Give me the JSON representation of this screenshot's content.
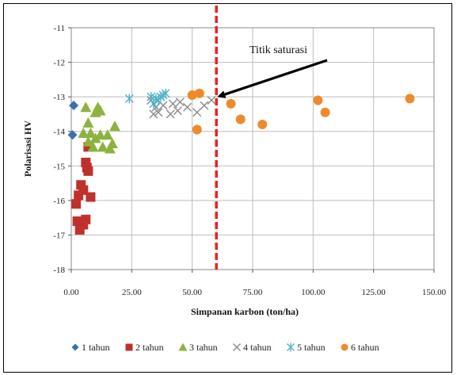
{
  "chart_data": {
    "type": "scatter",
    "title": "",
    "xlabel": "Simpanan karbon (ton/ha)",
    "ylabel": "Polarisasi HV",
    "xlim": [
      0,
      150
    ],
    "ylim": [
      -18,
      -11
    ],
    "x_ticks": [
      "0.00",
      "25.00",
      "50.00",
      "75.00",
      "100.00",
      "125.00",
      "150.00"
    ],
    "y_ticks": [
      "-11",
      "-12",
      "-13",
      "-14",
      "-15",
      "-16",
      "-17",
      "-18"
    ],
    "grid": true,
    "legend_position": "bottom",
    "annotation": {
      "text": "Titik saturasi",
      "arrow_to": [
        60,
        -13.05
      ]
    },
    "vline": {
      "x": 60,
      "color": "#e8231f",
      "style": "dashed"
    },
    "series": [
      {
        "name": "1 tahun",
        "marker": "diamond",
        "color": "#3a6fb0",
        "points": [
          [
            1,
            -13.25
          ],
          [
            0.5,
            -14.1
          ]
        ]
      },
      {
        "name": "2 tahun",
        "marker": "square",
        "color": "#c0312b",
        "points": [
          [
            6,
            -14.9
          ],
          [
            6.5,
            -15.05
          ],
          [
            7,
            -15.15
          ],
          [
            4,
            -15.55
          ],
          [
            5,
            -15.7
          ],
          [
            3,
            -15.85
          ],
          [
            8,
            -15.9
          ],
          [
            2,
            -16.1
          ],
          [
            2.5,
            -16.6
          ],
          [
            4,
            -16.7
          ],
          [
            5,
            -16.7
          ],
          [
            6,
            -16.55
          ],
          [
            3.5,
            -16.85
          ],
          [
            7,
            -14.45
          ]
        ]
      },
      {
        "name": "3 tahun",
        "marker": "triangle",
        "color": "#8db33f",
        "points": [
          [
            6,
            -13.3
          ],
          [
            11,
            -13.3
          ],
          [
            12,
            -13.4
          ],
          [
            10,
            -13.45
          ],
          [
            7,
            -13.75
          ],
          [
            18,
            -13.85
          ],
          [
            5,
            -14.05
          ],
          [
            8,
            -14.05
          ],
          [
            12,
            -14.1
          ],
          [
            15,
            -14.1
          ],
          [
            10,
            -14.2
          ],
          [
            7,
            -14.3
          ],
          [
            17,
            -14.35
          ],
          [
            13,
            -14.45
          ],
          [
            9,
            -14.45
          ],
          [
            16,
            -14.5
          ]
        ]
      },
      {
        "name": "4 tahun",
        "marker": "x",
        "color": "#8a8a8a",
        "points": [
          [
            33,
            -13.1
          ],
          [
            35,
            -13.3
          ],
          [
            38,
            -13.25
          ],
          [
            42,
            -13.2
          ],
          [
            45,
            -13.15
          ],
          [
            48,
            -13.3
          ],
          [
            36,
            -13.45
          ],
          [
            34,
            -13.5
          ],
          [
            41,
            -13.5
          ],
          [
            44,
            -13.4
          ],
          [
            52,
            -13.45
          ],
          [
            55,
            -13.25
          ],
          [
            58,
            -13.1
          ]
        ]
      },
      {
        "name": "5 tahun",
        "marker": "asterisk",
        "color": "#4fb3c8",
        "points": [
          [
            24,
            -13.05
          ],
          [
            33,
            -13.0
          ],
          [
            35,
            -13.05
          ],
          [
            37,
            -13.0
          ],
          [
            38,
            -12.95
          ],
          [
            36,
            -13.1
          ],
          [
            39,
            -12.9
          ],
          [
            34,
            -13.2
          ]
        ]
      },
      {
        "name": "6 tahun",
        "marker": "circle",
        "color": "#ef8a2c",
        "points": [
          [
            50,
            -12.95
          ],
          [
            53,
            -12.9
          ],
          [
            52,
            -13.95
          ],
          [
            66,
            -13.2
          ],
          [
            70,
            -13.65
          ],
          [
            79,
            -13.8
          ],
          [
            102,
            -13.1
          ],
          [
            105,
            -13.45
          ],
          [
            140,
            -13.05
          ]
        ]
      }
    ]
  }
}
